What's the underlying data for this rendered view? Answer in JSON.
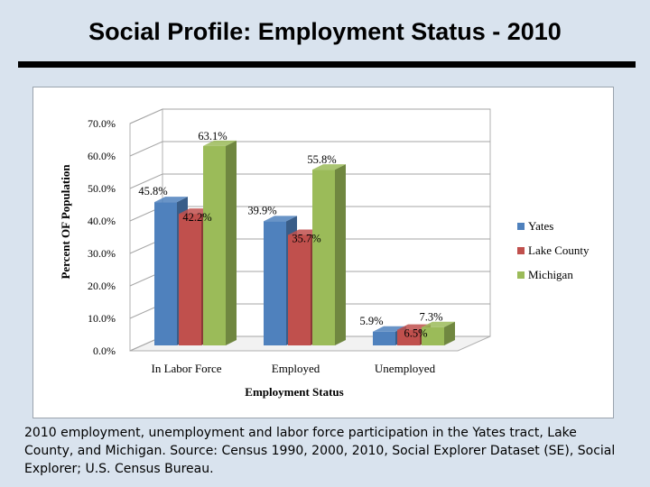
{
  "slide": {
    "title": "Social Profile: Employment Status - 2010",
    "caption": "2010 employment, unemployment and labor force participation in the Yates tract, Lake County, and Michigan.  Source: Census 1990, 2000, 2010, Social Explorer Dataset (SE), Social Explorer; U.S. Census Bureau."
  },
  "chart_data": {
    "type": "bar",
    "title": "",
    "xlabel": "Employment Status",
    "ylabel": "Percent OF Population",
    "categories": [
      "In Labor Force",
      "Employed",
      "Unemployed"
    ],
    "series": [
      {
        "name": "Yates",
        "values": [
          45.8,
          39.9,
          5.9
        ],
        "labels": [
          "45.8%",
          "39.9%",
          "5.9%"
        ],
        "color": "#4f81bd"
      },
      {
        "name": "Lake County",
        "values": [
          42.2,
          35.7,
          6.5
        ],
        "labels": [
          "42.2%",
          "35.7%",
          "6.5%"
        ],
        "color": "#c0504d"
      },
      {
        "name": "Michigan",
        "values": [
          63.1,
          55.8,
          7.3
        ],
        "labels": [
          "63.1%",
          "55.8%",
          "7.3%"
        ],
        "color": "#9bbb59"
      }
    ],
    "ylim": [
      0,
      70
    ],
    "yticks": [
      "0.0%",
      "10.0%",
      "20.0%",
      "30.0%",
      "40.0%",
      "50.0%",
      "60.0%",
      "70.0%"
    ],
    "grid": true,
    "style": "3d-clustered-column",
    "legend": "right"
  }
}
